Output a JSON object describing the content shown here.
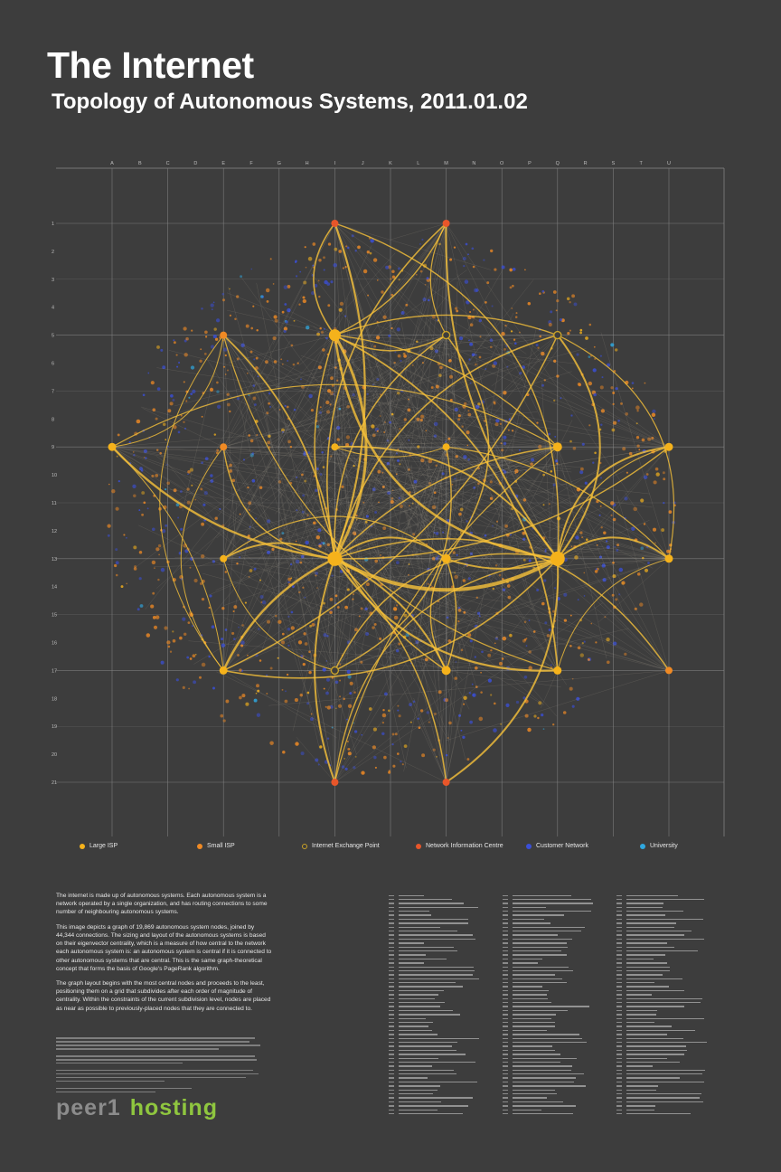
{
  "header": {
    "title": "The Internet",
    "subtitle": "Topology of Autonomous Systems, 2011.01.02"
  },
  "grid": {
    "columns": [
      "A",
      "B",
      "C",
      "D",
      "E",
      "F",
      "G",
      "H",
      "I",
      "J",
      "K",
      "L",
      "M",
      "N",
      "O",
      "P",
      "Q",
      "R",
      "S",
      "T",
      "U"
    ],
    "rows": [
      "1",
      "2",
      "3",
      "4",
      "5",
      "6",
      "7",
      "8",
      "9",
      "10",
      "11",
      "12",
      "13",
      "14",
      "15",
      "16",
      "17",
      "18",
      "19",
      "20",
      "21"
    ]
  },
  "colors": {
    "background": "#3d3d3d",
    "grid_line": "#8a8a8a",
    "large_isp": "#f5b21b",
    "small_isp": "#f08a24",
    "ixp": "#c9a227",
    "nic": "#e8562a",
    "customer": "#3a4fd8",
    "university": "#2fa8e0",
    "edge": "#f7c23a"
  },
  "legend": [
    {
      "label": "Large ISP",
      "color": "#f5b21b",
      "hollow": false
    },
    {
      "label": "Small ISP",
      "color": "#f08a24",
      "hollow": false
    },
    {
      "label": "Internet Exchange Point",
      "color": "#c9a227",
      "hollow": true
    },
    {
      "label": "Network Information Centre",
      "color": "#e8562a",
      "hollow": false
    },
    {
      "label": "Customer Network",
      "color": "#3a4fd8",
      "hollow": false
    },
    {
      "label": "University",
      "color": "#2fa8e0",
      "hollow": false
    }
  ],
  "intro": {
    "p1": "The internet is made up of autonomous systems. Each autonomous system is a network operated by a single organization, and has routing connections to some number of neighbouring autonomous systems.",
    "p2": "This image depicts a graph of 19,869 autonomous system nodes, joined by 44,344 connections. The sizing and layout of the autonomous systems is based on their eigenvector centrality, which is a measure of how central to the network each autonomous system is: an autonomous system is central if it is connected to other autonomous systems that are central. This is the same graph-theoretical concept that forms the basis of Google's PageRank algorithm.",
    "p3": "The graph layout begins with the most central nodes and proceeds to the least, positioning them on a grid that subdivides after each order of magnitude of centrality. Within the constraints of the current subdivision level, nodes are placed as near as possible to previously-placed nodes that they are connected to."
  },
  "logo": {
    "part1": "peer1",
    "part2": "hosting"
  }
}
